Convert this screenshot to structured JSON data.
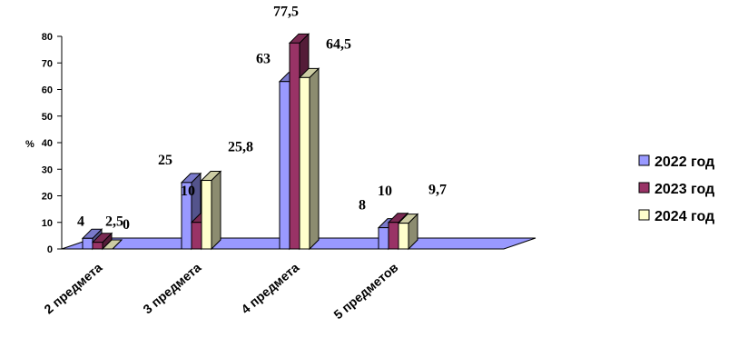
{
  "chart_data": {
    "type": "bar",
    "ylabel": "%",
    "ylim": [
      0,
      80
    ],
    "yticks": [
      0,
      10,
      20,
      30,
      40,
      50,
      60,
      70,
      80
    ],
    "grid": false,
    "legend_position": "right",
    "categories": [
      "2 предмета",
      "3 предмета",
      "4 предмета",
      "5 предметов"
    ],
    "series": [
      {
        "name": "2022 год",
        "values": [
          4,
          25,
          63,
          8
        ],
        "color": "#9999FF",
        "labels": [
          "4",
          "25",
          "63",
          "8"
        ]
      },
      {
        "name": "2023 год",
        "values": [
          2.5,
          10,
          77.5,
          10
        ],
        "color": "#993366",
        "labels": [
          "2,5",
          "10",
          "77,5",
          "10"
        ]
      },
      {
        "name": "2024 год",
        "values": [
          0,
          25.8,
          64.5,
          9.7
        ],
        "color": "#FFFFCC",
        "labels": [
          "0",
          "25,8",
          "64,5",
          "9,7"
        ]
      }
    ]
  }
}
